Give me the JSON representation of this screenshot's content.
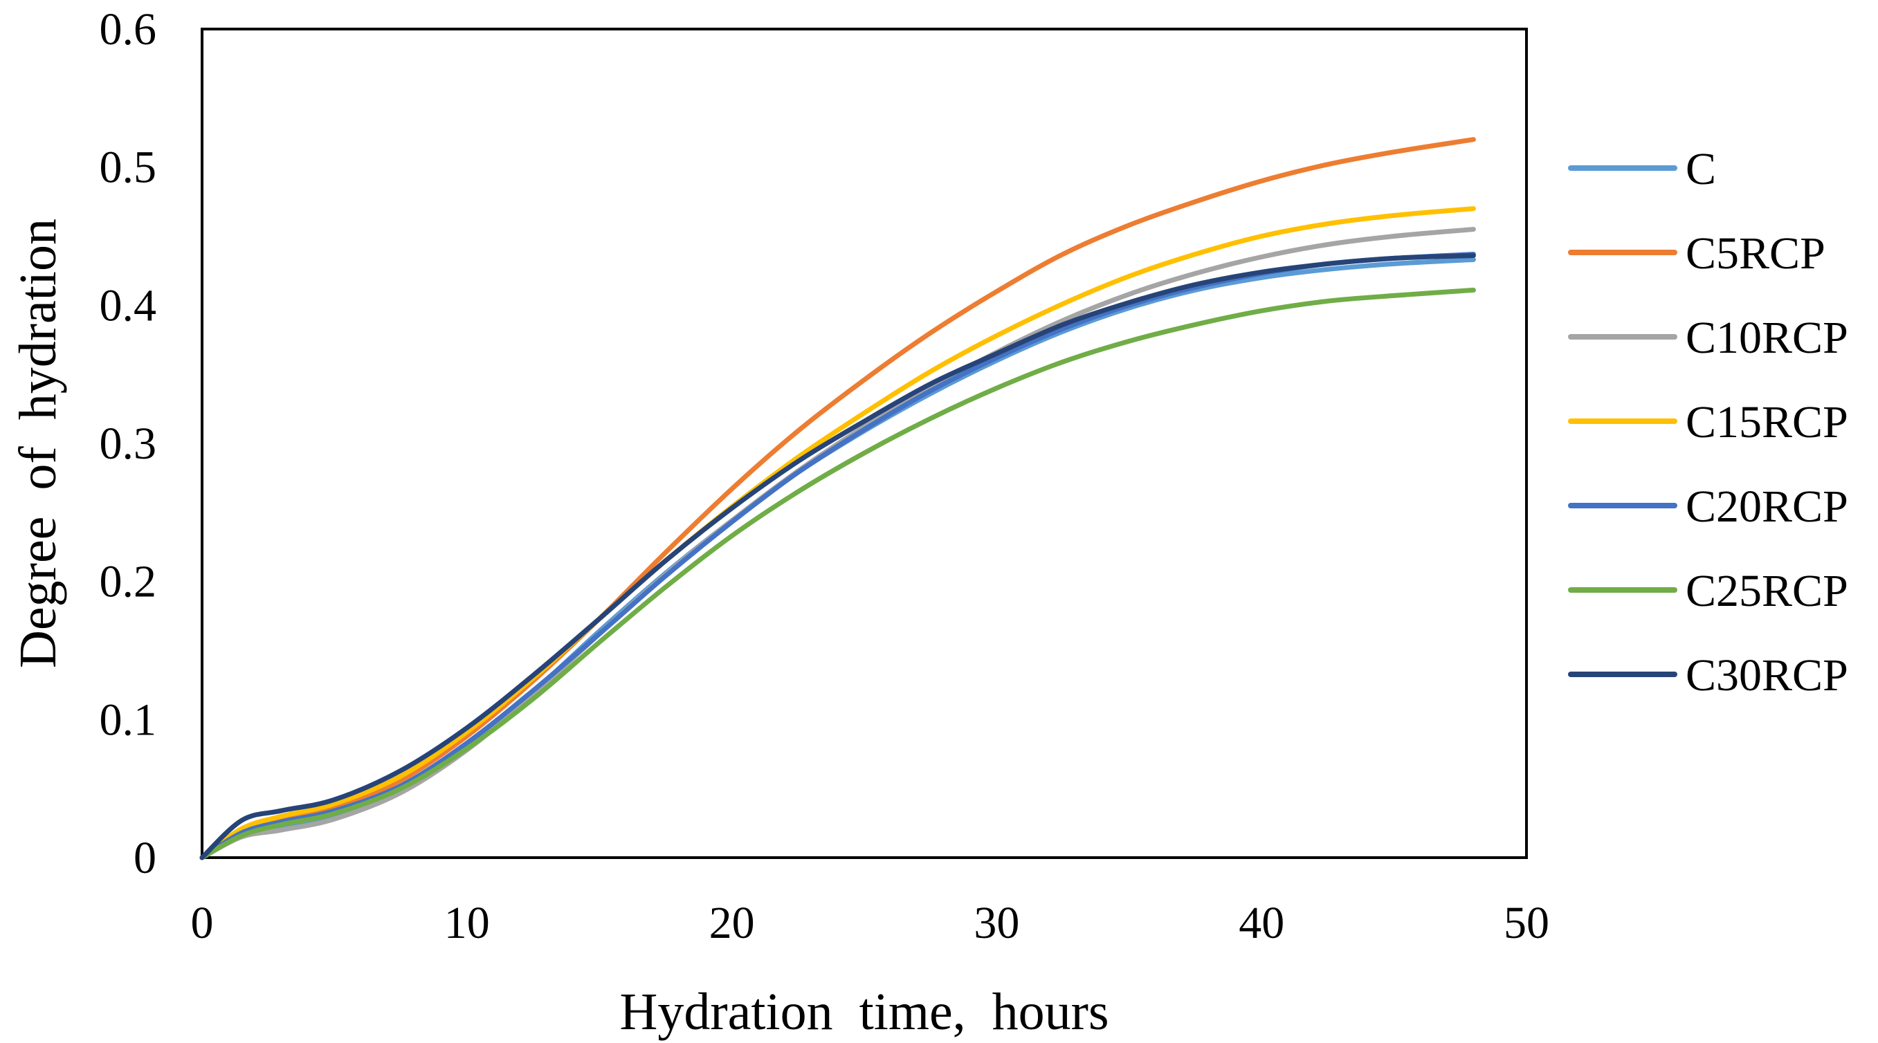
{
  "chart_data": {
    "type": "line",
    "title": "",
    "xlabel": "Hydration  time,  hours",
    "ylabel": "Degree  of  hydration",
    "xlim": [
      0,
      50
    ],
    "ylim": [
      0,
      0.6
    ],
    "x_ticks": [
      0,
      10,
      20,
      30,
      40,
      50
    ],
    "x_tick_labels": [
      "0",
      "10",
      "20",
      "30",
      "40",
      "50"
    ],
    "y_ticks": [
      0,
      0.1,
      0.2,
      0.3,
      0.4,
      0.5,
      0.6
    ],
    "y_tick_labels": [
      "0",
      "0.1",
      "0.2",
      "0.3",
      "0.4",
      "0.5",
      "0.6"
    ],
    "grid": false,
    "legend_position": "right",
    "x": [
      0,
      1.5,
      3,
      5,
      7.5,
      10,
      12.5,
      15,
      17.5,
      20,
      22.5,
      25,
      27.5,
      30,
      32.5,
      35,
      37.5,
      40,
      42.5,
      45,
      48
    ],
    "series": [
      {
        "name": "C",
        "color": "#5b9bd5",
        "values": [
          0,
          0.017,
          0.022,
          0.03,
          0.049,
          0.08,
          0.12,
          0.164,
          0.206,
          0.244,
          0.279,
          0.309,
          0.336,
          0.36,
          0.381,
          0.398,
          0.411,
          0.42,
          0.426,
          0.43,
          0.433
        ]
      },
      {
        "name": "C5RCP",
        "color": "#ed7d31",
        "values": [
          0,
          0.02,
          0.028,
          0.036,
          0.056,
          0.088,
          0.128,
          0.173,
          0.221,
          0.267,
          0.309,
          0.346,
          0.38,
          0.41,
          0.437,
          0.458,
          0.475,
          0.49,
          0.502,
          0.511,
          0.52
        ]
      },
      {
        "name": "C10RCP",
        "color": "#a5a5a5",
        "values": [
          0,
          0.015,
          0.02,
          0.028,
          0.047,
          0.078,
          0.118,
          0.162,
          0.205,
          0.244,
          0.28,
          0.312,
          0.34,
          0.366,
          0.389,
          0.408,
          0.423,
          0.435,
          0.444,
          0.45,
          0.455
        ]
      },
      {
        "name": "C15RCP",
        "color": "#ffc000",
        "values": [
          0,
          0.021,
          0.03,
          0.039,
          0.059,
          0.091,
          0.13,
          0.173,
          0.215,
          0.254,
          0.29,
          0.322,
          0.352,
          0.378,
          0.401,
          0.421,
          0.437,
          0.45,
          0.459,
          0.465,
          0.47
        ]
      },
      {
        "name": "C20RCP",
        "color": "#4472c4",
        "values": [
          0,
          0.018,
          0.026,
          0.034,
          0.052,
          0.083,
          0.121,
          0.162,
          0.204,
          0.243,
          0.279,
          0.31,
          0.338,
          0.362,
          0.383,
          0.4,
          0.413,
          0.423,
          0.43,
          0.434,
          0.437
        ]
      },
      {
        "name": "C25RCP",
        "color": "#70ad47",
        "values": [
          0,
          0.016,
          0.024,
          0.032,
          0.05,
          0.079,
          0.115,
          0.156,
          0.196,
          0.233,
          0.265,
          0.293,
          0.318,
          0.34,
          0.359,
          0.374,
          0.386,
          0.396,
          0.403,
          0.407,
          0.411
        ]
      },
      {
        "name": "C30RCP",
        "color": "#264478",
        "values": [
          0,
          0.027,
          0.034,
          0.042,
          0.063,
          0.094,
          0.132,
          0.173,
          0.215,
          0.253,
          0.287,
          0.316,
          0.343,
          0.365,
          0.386,
          0.402,
          0.415,
          0.424,
          0.43,
          0.434,
          0.436
        ]
      }
    ]
  }
}
